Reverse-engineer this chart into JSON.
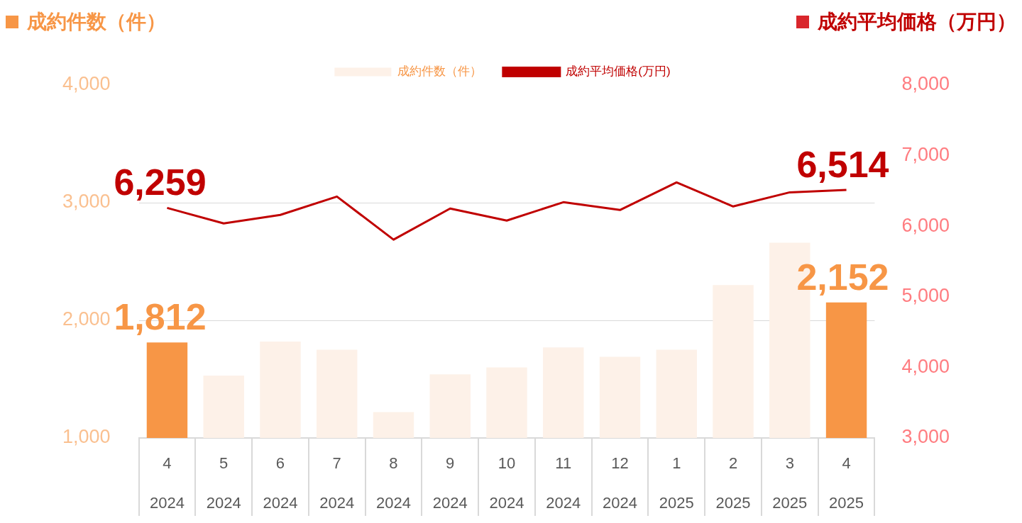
{
  "chart_data": {
    "type": "bar",
    "ylabel": "成約件数（件）",
    "y2label": "成約平均価格（万円）",
    "categories": [
      "4\n2024",
      "5\n2024",
      "6\n2024",
      "7\n2024",
      "8\n2024",
      "9\n2024",
      "10\n2024",
      "11\n2024",
      "12\n2024",
      "1\n2025",
      "2\n2025",
      "3\n2025",
      "4\n2025"
    ],
    "series": [
      {
        "name": "成約件数（件）",
        "color": "#fdf1e8",
        "colors": [
          "#f79646",
          "#fdf1e8",
          "#fdf1e8",
          "#fdf1e8",
          "#fdf1e8",
          "#fdf1e8",
          "#fdf1e8",
          "#fdf1e8",
          "#fdf1e8",
          "#fdf1e8",
          "#fdf1e8",
          "#fdf1e8",
          "#f79646"
        ],
        "values": [
          1812,
          1530,
          1820,
          1750,
          1220,
          1540,
          1600,
          1770,
          1690,
          1750,
          2300,
          2660,
          2152
        ],
        "value_labels": [
          "1,812",
          null,
          null,
          null,
          null,
          null,
          null,
          null,
          null,
          null,
          null,
          null,
          "2,152"
        ]
      },
      {
        "name": "成約平均価格(万円)",
        "type": "line",
        "axis": "y2",
        "color": "#c00000",
        "values": [
          6259,
          6040,
          6160,
          6420,
          5810,
          6250,
          6080,
          6340,
          6230,
          6620,
          6280,
          6480,
          6514
        ],
        "value_labels": [
          "6,259",
          null,
          null,
          null,
          null,
          null,
          null,
          null,
          null,
          null,
          null,
          null,
          "6,514"
        ]
      }
    ],
    "ylim": [
      1000,
      4000
    ],
    "yticks": [
      {
        "value": 1000,
        "label": "1,000"
      },
      {
        "value": 2000,
        "label": "2,000"
      },
      {
        "value": 3000,
        "label": "3,000"
      },
      {
        "value": 4000,
        "label": "4,000"
      }
    ],
    "y2lim": [
      3000,
      8000
    ],
    "y2ticks": [
      {
        "value": 3000,
        "label": "3,000"
      },
      {
        "value": 4000,
        "label": "4,000"
      },
      {
        "value": 5000,
        "label": "5,000"
      },
      {
        "value": 6000,
        "label": "6,000"
      },
      {
        "value": 7000,
        "label": "7,000"
      },
      {
        "value": 8000,
        "label": "8,000"
      }
    ],
    "grid": "y",
    "legend": "top",
    "marker": "none"
  }
}
